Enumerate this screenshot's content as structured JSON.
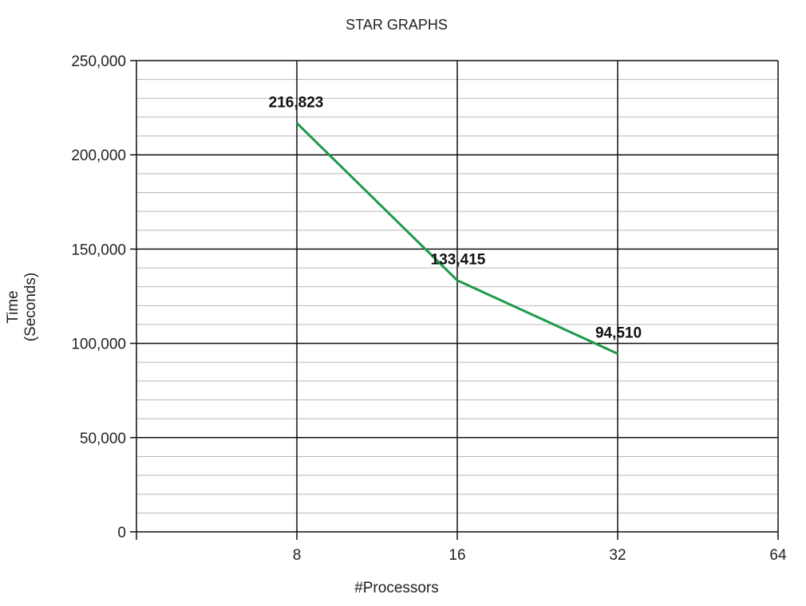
{
  "chart_data": {
    "type": "line",
    "title": "STAR GRAPHS",
    "xlabel": "#Processors",
    "ylabel": "Time (Seconds)",
    "ylabel_lines": [
      "Time",
      "(Seconds)"
    ],
    "categories": [
      "8",
      "16",
      "32"
    ],
    "x_ticks": [
      "",
      "8",
      "16",
      "32",
      "64"
    ],
    "y_ticks": [
      "0",
      "50,000",
      "100,000",
      "150,000",
      "200,000",
      "250,000"
    ],
    "ylim": [
      0,
      250000
    ],
    "grid": true,
    "series": [
      {
        "name": "Time",
        "color": "#1f9a4b",
        "x": [
          8,
          16,
          32
        ],
        "values": [
          216823,
          133415,
          94510
        ],
        "labels": [
          "216,823",
          "133,415",
          "94,510"
        ]
      }
    ]
  }
}
